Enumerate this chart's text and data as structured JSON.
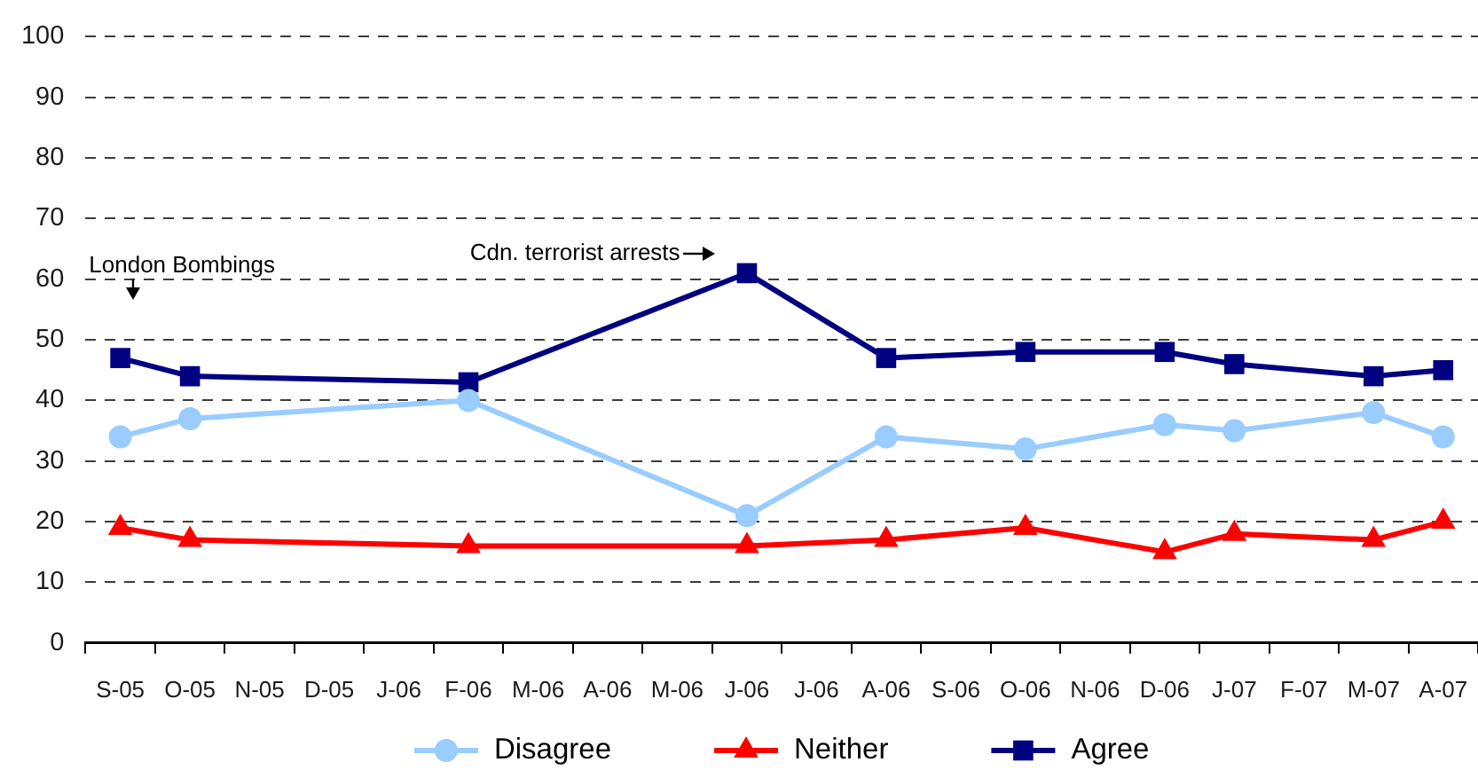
{
  "chart_data": {
    "type": "line",
    "categories": [
      "S-05",
      "O-05",
      "N-05",
      "D-05",
      "J-06",
      "F-06",
      "M-06",
      "A-06",
      "M-06",
      "J-06",
      "J-06",
      "A-06",
      "S-06",
      "O-06",
      "N-06",
      "D-06",
      "J-07",
      "F-07",
      "M-07",
      "A-07"
    ],
    "series": [
      {
        "name": "Disagree",
        "color": "#99ccff",
        "marker": "circle",
        "values": [
          34,
          37,
          null,
          null,
          null,
          40,
          null,
          null,
          null,
          21,
          null,
          34,
          null,
          32,
          null,
          36,
          35,
          null,
          38,
          34
        ]
      },
      {
        "name": "Neither",
        "color": "#ff0000",
        "marker": "triangle",
        "values": [
          19,
          17,
          null,
          null,
          null,
          16,
          null,
          null,
          null,
          16,
          null,
          17,
          null,
          19,
          null,
          15,
          18,
          null,
          17,
          20
        ]
      },
      {
        "name": "Agree",
        "color": "#000080",
        "marker": "square",
        "values": [
          47,
          44,
          null,
          null,
          null,
          43,
          null,
          null,
          null,
          61,
          null,
          47,
          null,
          48,
          null,
          48,
          46,
          null,
          44,
          45
        ]
      }
    ],
    "ylim": [
      0,
      100
    ],
    "yticks": [
      0,
      10,
      20,
      30,
      40,
      50,
      60,
      70,
      80,
      90,
      100
    ],
    "grid": "y",
    "legend": "bottom",
    "line_style": "solid",
    "annotations": [
      "London Bombings",
      "Cdn. terrorist arrests"
    ]
  }
}
